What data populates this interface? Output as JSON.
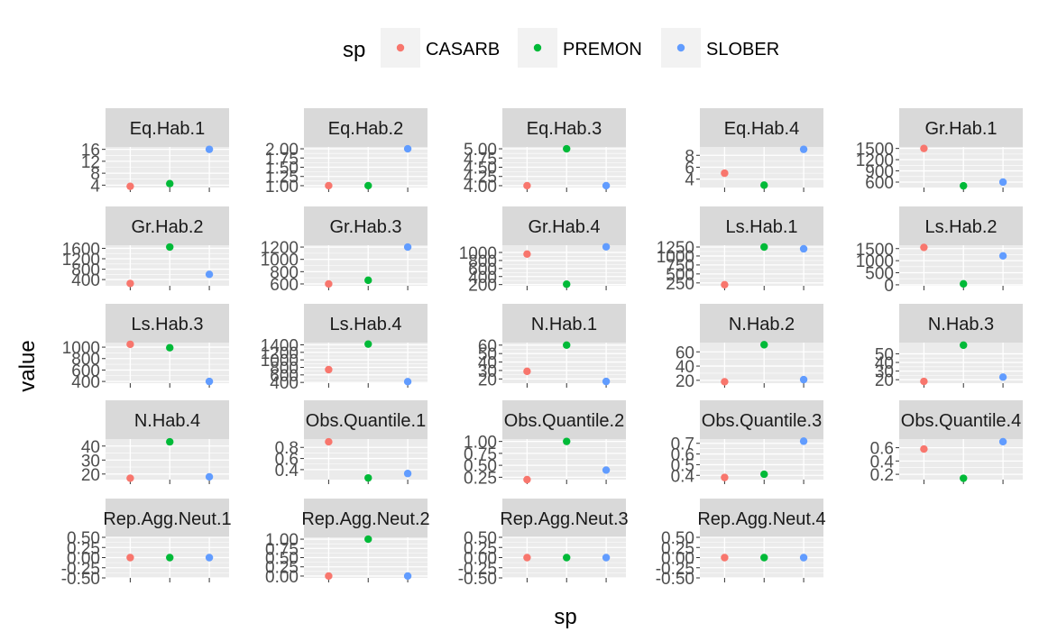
{
  "chart_data": {
    "type": "scatter",
    "facet_layout": "wrap-5-columns",
    "xlabel": "sp",
    "ylabel": "value",
    "legend": {
      "title": "sp",
      "position": "top",
      "items": [
        {
          "label": "CASARB",
          "color": "#F8766D"
        },
        {
          "label": "PREMON",
          "color": "#00BA38"
        },
        {
          "label": "SLOBER",
          "color": "#619CFF"
        }
      ]
    },
    "categories": [
      "CASARB",
      "PREMON",
      "SLOBER"
    ],
    "x_tick_labels_visible": false,
    "grid": true,
    "panel_background": "#EBEBEB",
    "strip_background": "#D9D9D9",
    "panels": [
      {
        "title": "Eq.Hab.1",
        "ylim": [
          3.2,
          16.8
        ],
        "ticks": [
          4,
          8,
          12,
          16
        ],
        "values": [
          3.6,
          4.5,
          16.0
        ]
      },
      {
        "title": "Eq.Hab.2",
        "ylim": [
          0.95,
          2.05
        ],
        "ticks": [
          1.0,
          1.25,
          1.5,
          1.75,
          2.0
        ],
        "tick_labels": [
          "1.00",
          "1.25",
          "1.50",
          "1.75",
          "2.00"
        ],
        "values": [
          1.0,
          1.0,
          2.0
        ]
      },
      {
        "title": "Eq.Hab.3",
        "ylim": [
          3.95,
          5.05
        ],
        "ticks": [
          4.0,
          4.25,
          4.5,
          4.75,
          5.0
        ],
        "tick_labels": [
          "4.00",
          "4.25",
          "4.50",
          "4.75",
          "5.00"
        ],
        "values": [
          4.0,
          5.0,
          4.0
        ]
      },
      {
        "title": "Eq.Hab.4",
        "ylim": [
          2.6,
          9.4
        ],
        "ticks": [
          4,
          6,
          8
        ],
        "values": [
          5.0,
          3.0,
          9.0
        ]
      },
      {
        "title": "Gr.Hab.1",
        "ylim": [
          455,
          1540
        ],
        "ticks": [
          600,
          900,
          1200,
          1500
        ],
        "values": [
          1500,
          500,
          600
        ]
      },
      {
        "title": "Gr.Hab.2",
        "ylim": [
          160,
          1720
        ],
        "ticks": [
          400,
          800,
          1200,
          1600
        ],
        "values": [
          250,
          1650,
          600
        ]
      },
      {
        "title": "Gr.Hab.3",
        "ylim": [
          570,
          1230
        ],
        "ticks": [
          600,
          800,
          1000,
          1200
        ],
        "values": [
          600,
          660,
          1200
        ]
      },
      {
        "title": "Gr.Hab.4",
        "ylim": [
          170,
          1180
        ],
        "ticks": [
          200,
          400,
          600,
          800,
          1000
        ],
        "values": [
          960,
          210,
          1140
        ]
      },
      {
        "title": "Ls.Hab.1",
        "ylim": [
          170,
          1300
        ],
        "ticks": [
          250,
          500,
          750,
          1000,
          1250
        ],
        "values": [
          200,
          1250,
          1200
        ]
      },
      {
        "title": "Ls.Hab.2",
        "ylim": [
          -40,
          1640
        ],
        "ticks": [
          0,
          500,
          1000,
          1500
        ],
        "values": [
          1550,
          40,
          1200
        ]
      },
      {
        "title": "Ls.Hab.3",
        "ylim": [
          370,
          1080
        ],
        "ticks": [
          400,
          600,
          800,
          1000
        ],
        "values": [
          1050,
          990,
          400
        ]
      },
      {
        "title": "Ls.Hab.4",
        "ylim": [
          380,
          1460
        ],
        "ticks": [
          400,
          600,
          800,
          1000,
          1200,
          1400
        ],
        "values": [
          740,
          1420,
          420
        ]
      },
      {
        "title": "N.Hab.1",
        "ylim": [
          15,
          63
        ],
        "ticks": [
          20,
          30,
          40,
          50,
          60
        ],
        "values": [
          29,
          60,
          17
        ]
      },
      {
        "title": "N.Hab.2",
        "ylim": [
          16,
          73
        ],
        "ticks": [
          20,
          40,
          60
        ],
        "values": [
          18,
          70,
          21
        ]
      },
      {
        "title": "N.Hab.3",
        "ylim": [
          16,
          63
        ],
        "ticks": [
          20,
          30,
          40,
          50
        ],
        "values": [
          18,
          60,
          23
        ]
      },
      {
        "title": "N.Hab.4",
        "ylim": [
          16,
          45
        ],
        "ticks": [
          20,
          30,
          40
        ],
        "values": [
          17,
          43,
          18
        ]
      },
      {
        "title": "Obs.Quantile.1",
        "ylim": [
          0.22,
          0.95
        ],
        "ticks": [
          0.4,
          0.6,
          0.8
        ],
        "values": [
          0.9,
          0.25,
          0.33
        ]
      },
      {
        "title": "Obs.Quantile.2",
        "ylim": [
          0.2,
          1.05
        ],
        "ticks": [
          0.25,
          0.5,
          0.75,
          1.0
        ],
        "tick_labels": [
          "0.25",
          "0.50",
          "0.75",
          "1.00"
        ],
        "values": [
          0.2,
          1.0,
          0.4
        ]
      },
      {
        "title": "Obs.Quantile.3",
        "ylim": [
          0.36,
          0.74
        ],
        "ticks": [
          0.4,
          0.5,
          0.6,
          0.7
        ],
        "values": [
          0.38,
          0.41,
          0.72
        ]
      },
      {
        "title": "Obs.Quantile.4",
        "ylim": [
          0.12,
          0.73
        ],
        "ticks": [
          0.2,
          0.4,
          0.6
        ],
        "values": [
          0.58,
          0.14,
          0.69
        ]
      },
      {
        "title": "Rep.Agg.Neut.1",
        "ylim": [
          -0.5,
          0.5
        ],
        "ticks": [
          -0.5,
          -0.25,
          0.0,
          0.25,
          0.5
        ],
        "tick_labels": [
          "-0.50",
          "-0.25",
          "0.00",
          "0.25",
          "0.50"
        ],
        "values": [
          0,
          0,
          0
        ]
      },
      {
        "title": "Rep.Agg.Neut.2",
        "ylim": [
          -0.05,
          1.05
        ],
        "ticks": [
          0.0,
          0.25,
          0.5,
          0.75,
          1.0
        ],
        "tick_labels": [
          "0.00",
          "0.25",
          "0.50",
          "0.75",
          "1.00"
        ],
        "values": [
          0,
          1,
          0
        ]
      },
      {
        "title": "Rep.Agg.Neut.3",
        "ylim": [
          -0.5,
          0.5
        ],
        "ticks": [
          -0.5,
          -0.25,
          0.0,
          0.25,
          0.5
        ],
        "tick_labels": [
          "-0.50",
          "-0.25",
          "0.00",
          "0.25",
          "0.50"
        ],
        "values": [
          0,
          0,
          0
        ]
      },
      {
        "title": "Rep.Agg.Neut.4",
        "ylim": [
          -0.5,
          0.5
        ],
        "ticks": [
          -0.5,
          -0.25,
          0.0,
          0.25,
          0.5
        ],
        "tick_labels": [
          "-0.50",
          "-0.25",
          "0.00",
          "0.25",
          "0.50"
        ],
        "values": [
          0,
          0,
          0
        ]
      }
    ]
  }
}
